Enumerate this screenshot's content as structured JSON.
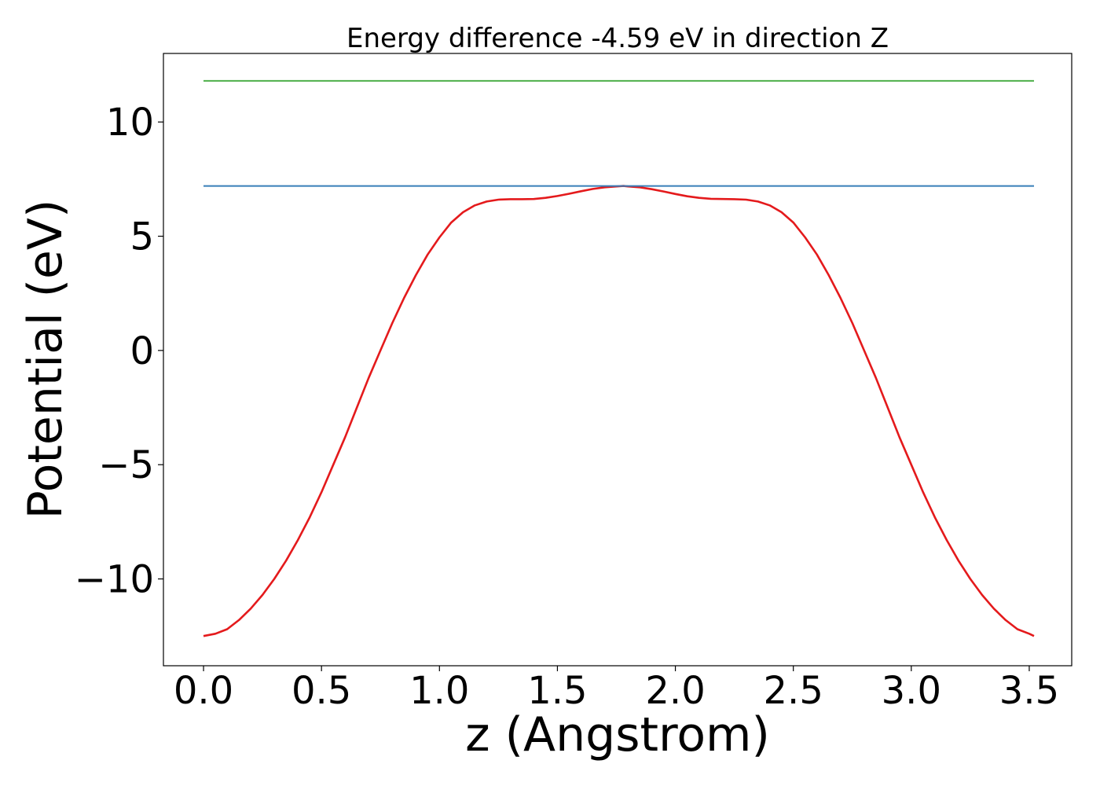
{
  "chart_data": {
    "type": "line",
    "title": "Energy difference -4.59 eV in direction Z",
    "xlabel": "z (Angstrom)",
    "ylabel": "Potential (eV)",
    "xlim": [
      -0.17,
      3.68
    ],
    "ylim": [
      -13.8,
      13.0
    ],
    "xticks": [
      0.0,
      0.5,
      1.0,
      1.5,
      2.0,
      2.5,
      3.0,
      3.5
    ],
    "xtick_labels": [
      "0.0",
      "0.5",
      "1.0",
      "1.5",
      "2.0",
      "2.5",
      "3.0",
      "3.5"
    ],
    "yticks": [
      10,
      5,
      0,
      -5,
      -10
    ],
    "ytick_labels": [
      "10",
      "5",
      "0",
      "−5",
      "−10"
    ],
    "grid": false,
    "series": [
      {
        "color": "#e41a1c",
        "x": [
          0.0,
          0.05,
          0.1,
          0.15,
          0.2,
          0.25,
          0.3,
          0.35,
          0.4,
          0.45,
          0.5,
          0.55,
          0.6,
          0.65,
          0.7,
          0.75,
          0.8,
          0.85,
          0.9,
          0.95,
          1.0,
          1.05,
          1.1,
          1.15,
          1.2,
          1.25,
          1.3,
          1.35,
          1.4,
          1.45,
          1.5,
          1.55,
          1.6,
          1.65,
          1.7,
          1.75,
          1.78,
          1.8,
          1.85,
          1.9,
          1.95,
          2.0,
          2.05,
          2.1,
          2.15,
          2.2,
          2.25,
          2.3,
          2.35,
          2.4,
          2.45,
          2.5,
          2.55,
          2.6,
          2.65,
          2.7,
          2.75,
          2.8,
          2.85,
          2.9,
          2.95,
          3.0,
          3.05,
          3.1,
          3.15,
          3.2,
          3.25,
          3.3,
          3.35,
          3.4,
          3.45,
          3.5,
          3.52
        ],
        "y": [
          -12.5,
          -12.4,
          -12.2,
          -11.8,
          -11.3,
          -10.7,
          -10.0,
          -9.2,
          -8.3,
          -7.3,
          -6.2,
          -5.0,
          -3.8,
          -2.5,
          -1.2,
          0.0,
          1.2,
          2.3,
          3.3,
          4.2,
          4.95,
          5.6,
          6.05,
          6.35,
          6.52,
          6.6,
          6.62,
          6.62,
          6.63,
          6.68,
          6.76,
          6.86,
          6.97,
          7.07,
          7.14,
          7.18,
          7.2,
          7.18,
          7.14,
          7.06,
          6.96,
          6.85,
          6.75,
          6.68,
          6.64,
          6.63,
          6.62,
          6.6,
          6.52,
          6.35,
          6.05,
          5.6,
          4.95,
          4.2,
          3.3,
          2.3,
          1.2,
          0.0,
          -1.2,
          -2.5,
          -3.8,
          -5.0,
          -6.2,
          -7.3,
          -8.3,
          -9.2,
          -10.0,
          -10.7,
          -11.3,
          -11.8,
          -12.2,
          -12.4,
          -12.5
        ]
      },
      {
        "color": "#377eb8",
        "x": [
          0.0,
          3.52
        ],
        "y": [
          7.2,
          7.2
        ]
      },
      {
        "color": "#4daf4a",
        "x": [
          0.0,
          3.52
        ],
        "y": [
          11.8,
          11.8
        ]
      }
    ]
  }
}
